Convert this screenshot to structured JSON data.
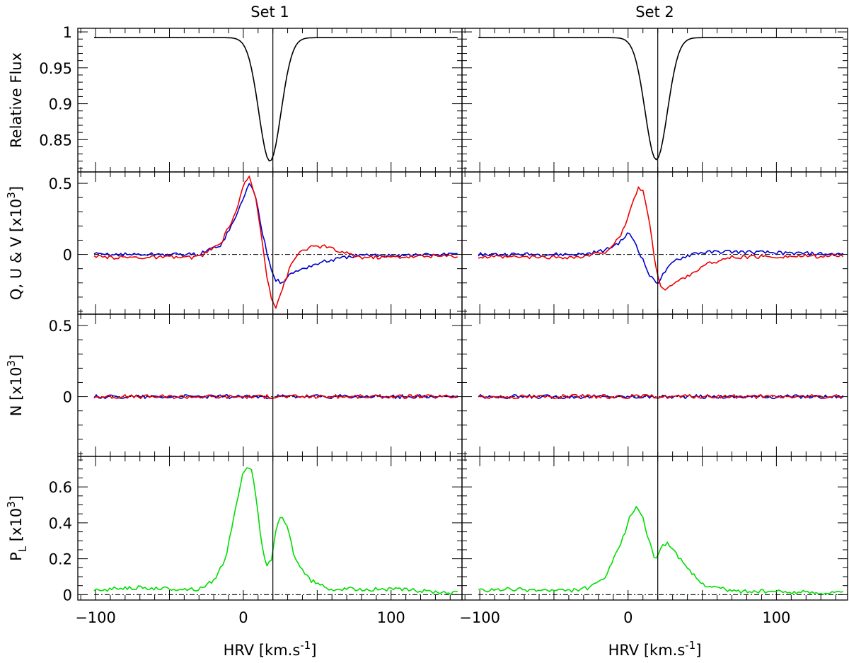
{
  "chart_data": {
    "type": "line",
    "xlabel": "HRV [km.s",
    "xlabel_sup": "-1",
    "xlabel_close": "]",
    "xlim": [
      -112,
      148
    ],
    "xticks": [
      -100,
      0,
      100
    ],
    "xtick_labels": [
      "−100",
      "0",
      "100"
    ],
    "reference_velocity": 20,
    "columns": [
      {
        "title": "Set 1",
        "case": 1
      },
      {
        "title": "Set 2",
        "case": 2
      }
    ],
    "rows": [
      {
        "id": "flux",
        "ylabel": "Relative Flux",
        "ylim": [
          0.805,
          1.005
        ],
        "yticks": [
          0.85,
          0.9,
          0.95,
          1
        ],
        "ytick_labels": [
          "0.85",
          "0.9",
          "0.95",
          "1"
        ],
        "zero_line": false,
        "series": [
          {
            "color": "#000000",
            "profile": "stokes_i"
          }
        ]
      },
      {
        "id": "qu",
        "ylabel": "Q, U & V [x10",
        "ylabel_sup": "3",
        "ylabel_close": "]",
        "ylim": [
          -0.42,
          0.58
        ],
        "yticks": [
          0,
          0.5
        ],
        "ytick_labels": [
          "0",
          "0.5"
        ],
        "zero_line": true,
        "series": [
          {
            "color": "#0000cc",
            "profile": "stokes_q"
          },
          {
            "color": "#ee0000",
            "profile": "stokes_u"
          }
        ]
      },
      {
        "id": "null",
        "ylabel": "N [x10",
        "ylabel_sup": "3",
        "ylabel_close": "]",
        "ylim": [
          -0.42,
          0.58
        ],
        "yticks": [
          0,
          0.5
        ],
        "ytick_labels": [
          "0",
          "0.5"
        ],
        "zero_line": true,
        "series": [
          {
            "color": "#0000cc",
            "profile": "null_1"
          },
          {
            "color": "#ee0000",
            "profile": "null_2"
          }
        ]
      },
      {
        "id": "pl",
        "ylabel": "P",
        "ylabel_sub": "L",
        "ylabel_rest": " [x10",
        "ylabel_sup": "3",
        "ylabel_close": "]",
        "ylim": [
          -0.03,
          0.77
        ],
        "yticks": [
          0,
          0.2,
          0.4,
          0.6
        ],
        "ytick_labels": [
          "0",
          "0.2",
          "0.4",
          "0.6"
        ],
        "zero_line": true,
        "series": [
          {
            "color": "#00dd00",
            "profile": "linear_pol"
          }
        ]
      }
    ],
    "profiles": {
      "x_range": [
        -101,
        145
      ],
      "x_step": 1.5,
      "stokes_i": {
        "continuum": 0.992,
        "lines": {
          "1": {
            "depth": 0.172,
            "center": 18,
            "width": 7.5
          },
          "2": {
            "depth": 0.17,
            "center": 19,
            "width": 7.5
          }
        }
      },
      "stokes_q": {
        "1": [
          [
            -101,
            0
          ],
          [
            -30,
            0
          ],
          [
            -15,
            0.07
          ],
          [
            -5,
            0.26
          ],
          [
            0,
            0.4
          ],
          [
            4,
            0.5
          ],
          [
            8,
            0.42
          ],
          [
            13,
            0.15
          ],
          [
            18,
            -0.07
          ],
          [
            22,
            -0.18
          ],
          [
            26,
            -0.2
          ],
          [
            32,
            -0.14
          ],
          [
            40,
            -0.1
          ],
          [
            55,
            -0.05
          ],
          [
            75,
            -0.01
          ],
          [
            145,
            0
          ]
        ],
        "2": [
          [
            -101,
            0
          ],
          [
            -30,
            0
          ],
          [
            -15,
            0.03
          ],
          [
            -5,
            0.09
          ],
          [
            0,
            0.15
          ],
          [
            4,
            0.1
          ],
          [
            10,
            -0.04
          ],
          [
            15,
            -0.16
          ],
          [
            20,
            -0.2
          ],
          [
            25,
            -0.12
          ],
          [
            32,
            -0.04
          ],
          [
            45,
            0.01
          ],
          [
            65,
            0.02
          ],
          [
            145,
            0
          ]
        ]
      },
      "stokes_u": {
        "1": [
          [
            -101,
            -0.02
          ],
          [
            -30,
            -0.02
          ],
          [
            -15,
            0.08
          ],
          [
            -5,
            0.3
          ],
          [
            0,
            0.48
          ],
          [
            4,
            0.54
          ],
          [
            8,
            0.42
          ],
          [
            12,
            0.15
          ],
          [
            16,
            -0.15
          ],
          [
            19,
            -0.3
          ],
          [
            22,
            -0.37
          ],
          [
            26,
            -0.25
          ],
          [
            32,
            -0.08
          ],
          [
            38,
            0.02
          ],
          [
            45,
            0.05
          ],
          [
            55,
            0.06
          ],
          [
            65,
            0.02
          ],
          [
            80,
            -0.02
          ],
          [
            145,
            -0.01
          ]
        ],
        "2": [
          [
            -101,
            -0.02
          ],
          [
            -30,
            -0.02
          ],
          [
            -15,
            0.02
          ],
          [
            -5,
            0.12
          ],
          [
            2,
            0.33
          ],
          [
            7,
            0.47
          ],
          [
            10,
            0.45
          ],
          [
            14,
            0.25
          ],
          [
            18,
            -0.05
          ],
          [
            22,
            -0.22
          ],
          [
            25,
            -0.25
          ],
          [
            32,
            -0.2
          ],
          [
            40,
            -0.15
          ],
          [
            55,
            -0.06
          ],
          [
            70,
            -0.02
          ],
          [
            145,
            -0.01
          ]
        ]
      },
      "null_1": {
        "1": [
          [
            -101,
            0
          ],
          [
            145,
            0
          ]
        ],
        "2": [
          [
            -101,
            0
          ],
          [
            145,
            0
          ]
        ]
      },
      "null_2": {
        "1": [
          [
            -101,
            0
          ],
          [
            145,
            0
          ]
        ],
        "2": [
          [
            -101,
            0
          ],
          [
            145,
            0
          ]
        ]
      },
      "linear_pol": {
        "1": [
          [
            -101,
            0.02
          ],
          [
            -80,
            0.04
          ],
          [
            -40,
            0.03
          ],
          [
            -30,
            0.03
          ],
          [
            -20,
            0.08
          ],
          [
            -12,
            0.2
          ],
          [
            -5,
            0.5
          ],
          [
            0,
            0.68
          ],
          [
            3,
            0.72
          ],
          [
            6,
            0.68
          ],
          [
            10,
            0.45
          ],
          [
            13,
            0.25
          ],
          [
            16,
            0.15
          ],
          [
            19,
            0.2
          ],
          [
            22,
            0.36
          ],
          [
            26,
            0.44
          ],
          [
            30,
            0.37
          ],
          [
            35,
            0.2
          ],
          [
            45,
            0.08
          ],
          [
            60,
            0.03
          ],
          [
            100,
            0.03
          ],
          [
            145,
            0.01
          ]
        ],
        "2": [
          [
            -101,
            0.02
          ],
          [
            -80,
            0.03
          ],
          [
            -40,
            0.02
          ],
          [
            -25,
            0.04
          ],
          [
            -15,
            0.1
          ],
          [
            -5,
            0.28
          ],
          [
            2,
            0.45
          ],
          [
            6,
            0.49
          ],
          [
            10,
            0.43
          ],
          [
            14,
            0.3
          ],
          [
            17,
            0.22
          ],
          [
            19,
            0.21
          ],
          [
            22,
            0.26
          ],
          [
            26,
            0.29
          ],
          [
            30,
            0.26
          ],
          [
            38,
            0.16
          ],
          [
            50,
            0.06
          ],
          [
            70,
            0.02
          ],
          [
            145,
            0.01
          ]
        ]
      }
    }
  }
}
